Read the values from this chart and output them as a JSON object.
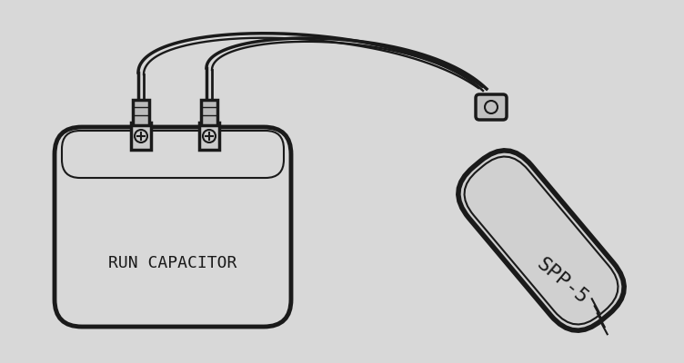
{
  "background_color": "#d8d8d8",
  "line_color": "#1a1a1a",
  "text_run_cap": "RUN CAPACITOR",
  "text_spp": "SPP-5",
  "fig_width": 7.52,
  "fig_height": 4.0,
  "dpi": 100
}
